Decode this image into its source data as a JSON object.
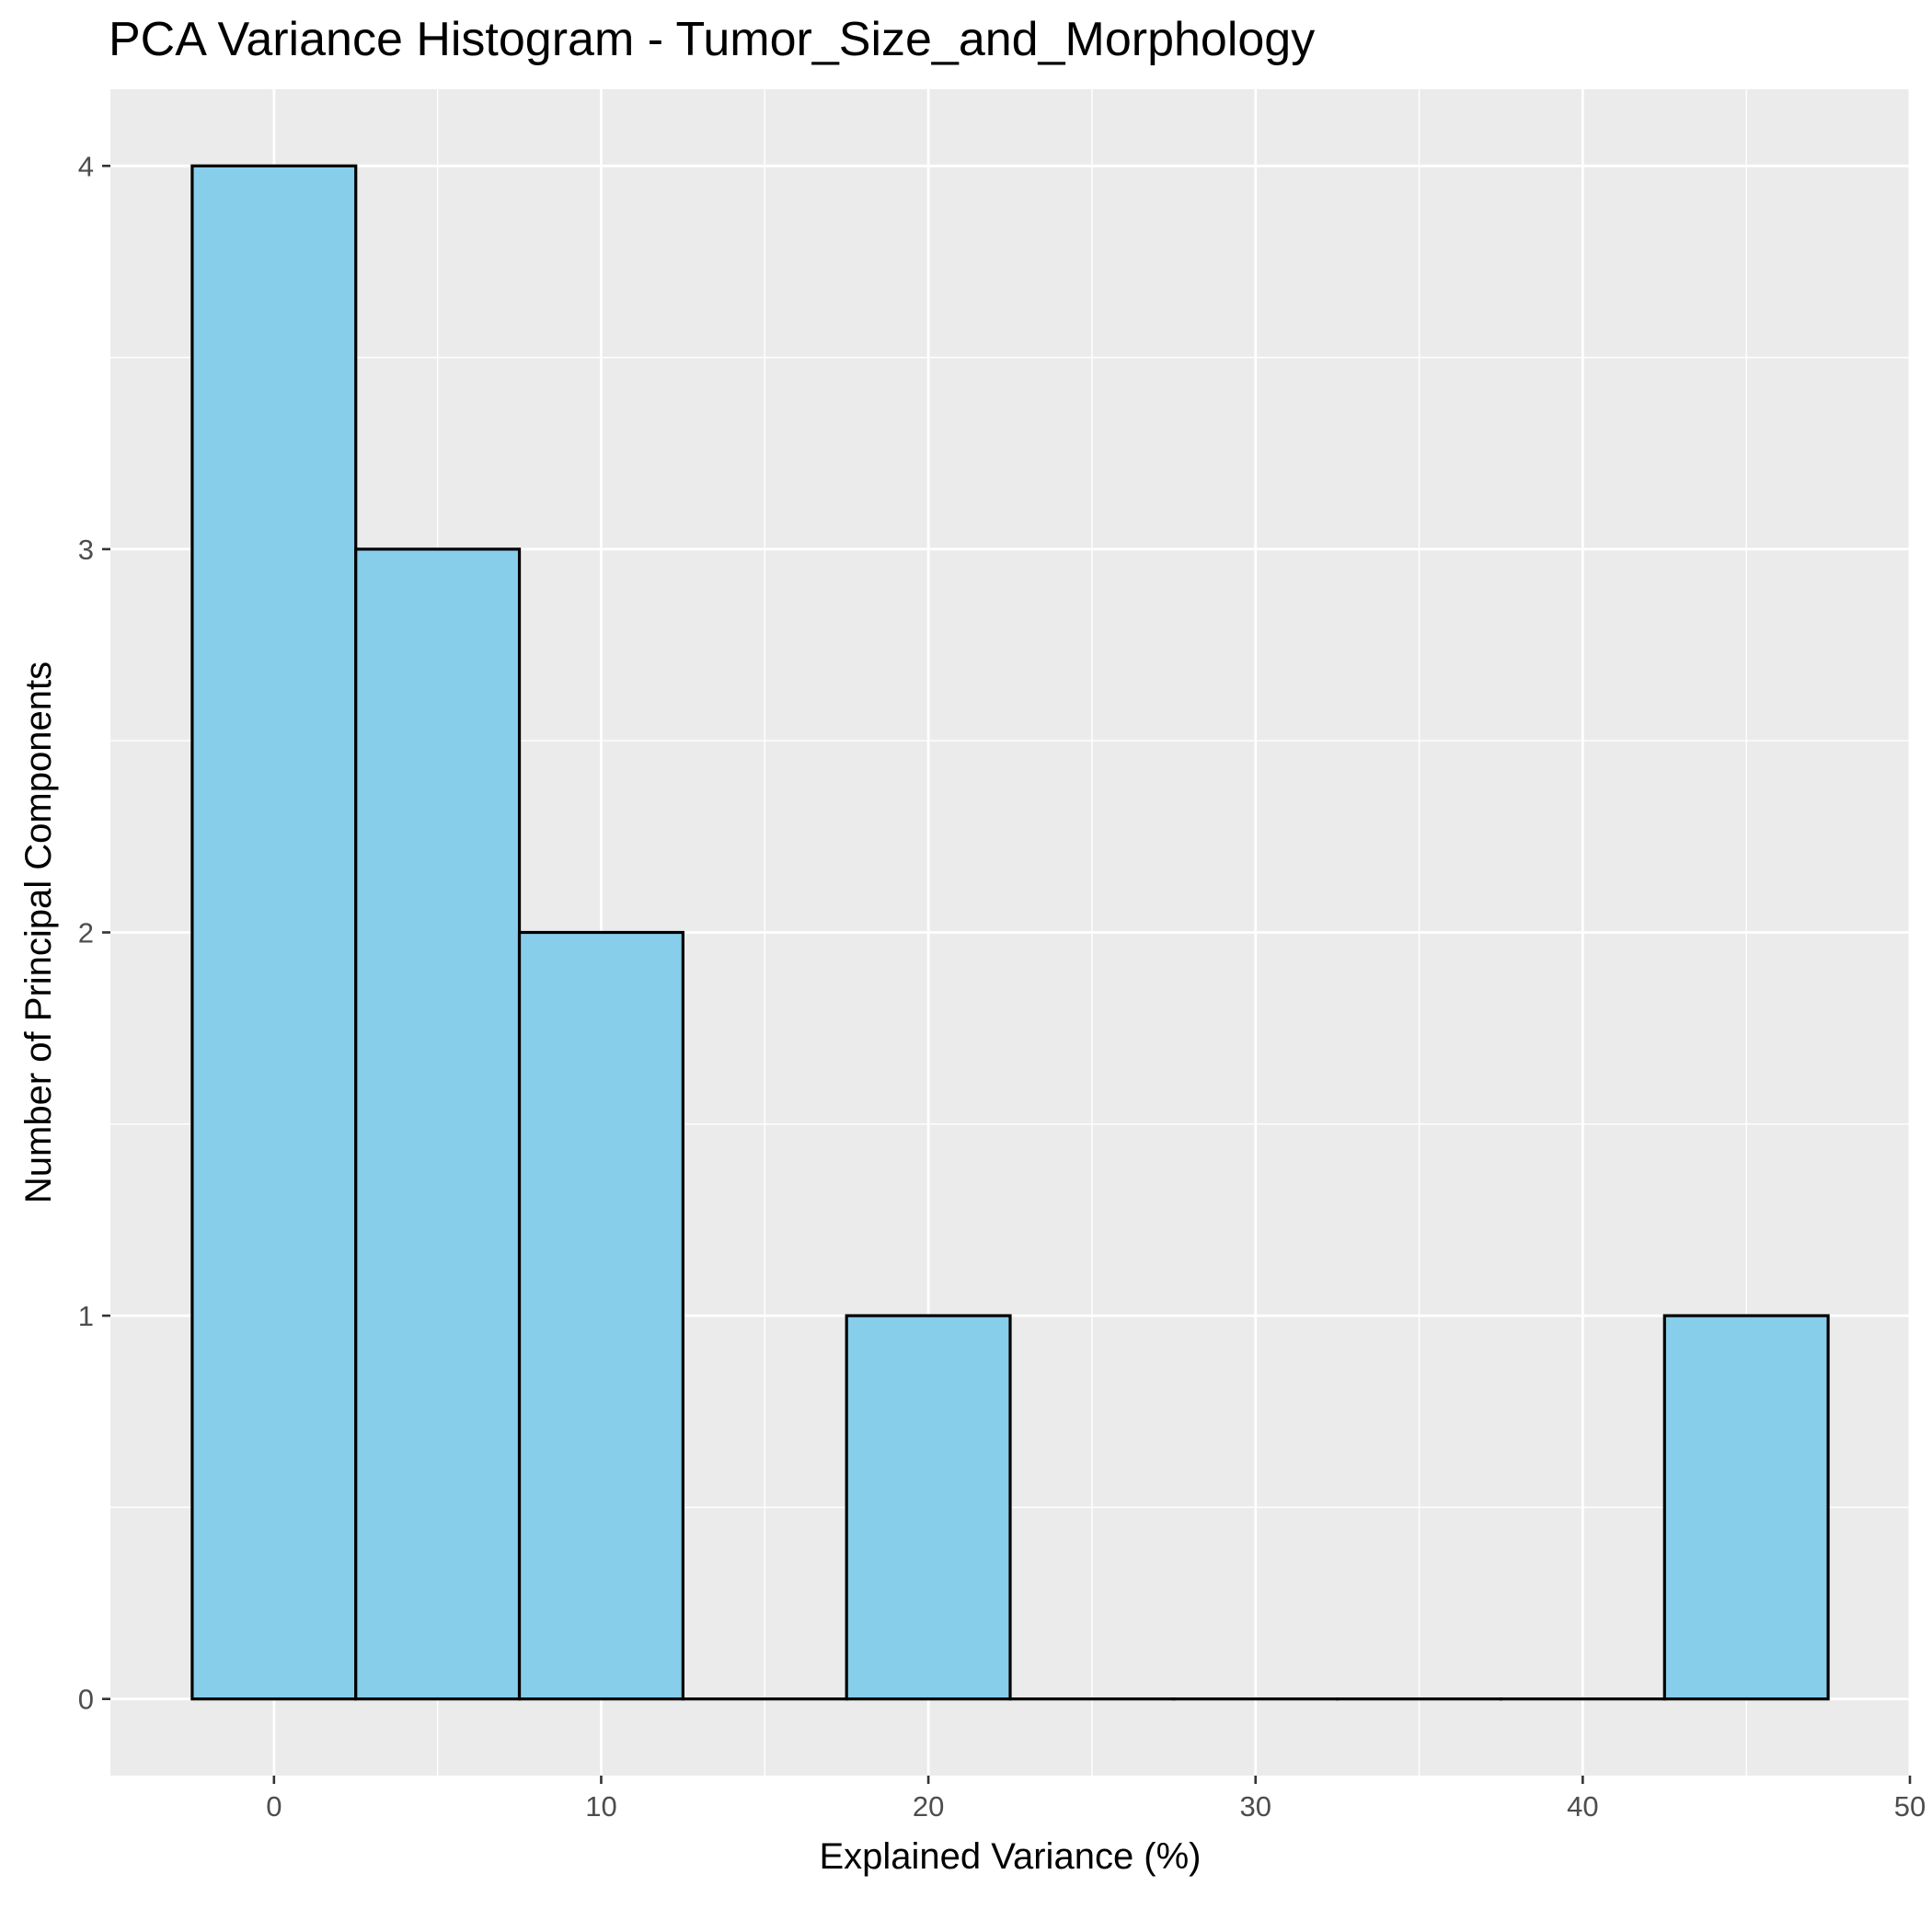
{
  "chart_data": {
    "type": "bar",
    "title": "PCA Variance Histogram - Tumor_Size_and_Morphology",
    "xlabel": "Explained Variance (%)",
    "ylabel": "Number of Principal Components",
    "bin_width": 5,
    "bins": [
      {
        "x_start": -2.5,
        "x_end": 2.5,
        "count": 4
      },
      {
        "x_start": 2.5,
        "x_end": 7.5,
        "count": 3
      },
      {
        "x_start": 7.5,
        "x_end": 12.5,
        "count": 2
      },
      {
        "x_start": 12.5,
        "x_end": 17.5,
        "count": 0
      },
      {
        "x_start": 17.5,
        "x_end": 22.5,
        "count": 1
      },
      {
        "x_start": 22.5,
        "x_end": 27.5,
        "count": 0
      },
      {
        "x_start": 27.5,
        "x_end": 32.5,
        "count": 0
      },
      {
        "x_start": 32.5,
        "x_end": 37.5,
        "count": 0
      },
      {
        "x_start": 37.5,
        "x_end": 42.5,
        "count": 0
      },
      {
        "x_start": 42.5,
        "x_end": 47.5,
        "count": 1
      }
    ],
    "x_ticks": [
      0,
      10,
      20,
      30,
      40,
      50
    ],
    "y_ticks": [
      0,
      1,
      2,
      3,
      4
    ],
    "xlim": [
      -5,
      50
    ],
    "ylim": [
      -0.2,
      4.2
    ],
    "grid": true,
    "colors": {
      "panel_background": "#ebebeb",
      "grid": "#ffffff",
      "bar_fill": "#87ceeb",
      "bar_outline": "#000000"
    }
  }
}
